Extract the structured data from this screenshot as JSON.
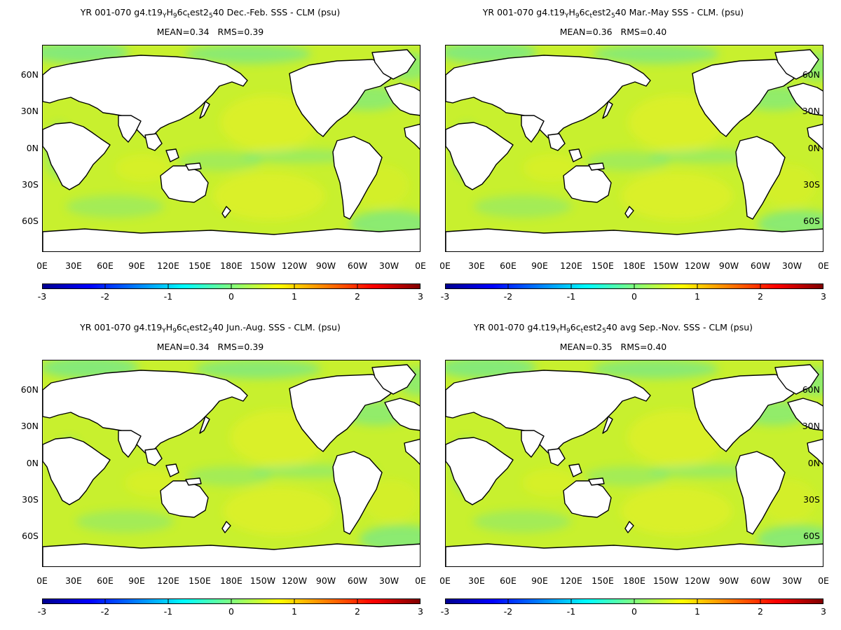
{
  "chart_data": [
    {
      "type": "heatmap",
      "title": {
        "pre": "YR 001-070 g4.t19",
        "s1": "Y",
        "m1": "H",
        "s2": "9",
        "m2": "6c",
        "s3": "t",
        "m3": "est2",
        "s4": "5",
        "post": "40  Dec.-Feb. SSS - CLM (psu)"
      },
      "stats": "MEAN=0.34   RMS=0.39",
      "lat_ticks": [
        "60N",
        "30N",
        "0N",
        "30S",
        "60S"
      ],
      "lon_ticks": [
        "0E",
        "30E",
        "60E",
        "90E",
        "120E",
        "150E",
        "180E",
        "150W",
        "120W",
        "90W",
        "60W",
        "30W",
        "0E"
      ],
      "colorbar_ticks": [
        "-3",
        "-2",
        "-1",
        "0",
        "1",
        "2",
        "3"
      ],
      "colorbar_range": [
        -3,
        3
      ],
      "mean": 0.34,
      "rms": 0.39
    },
    {
      "type": "heatmap",
      "title": {
        "pre": "YR 001-070 g4.t19",
        "s1": "Y",
        "m1": "H",
        "s2": "9",
        "m2": "6c",
        "s3": "t",
        "m3": "est2",
        "s4": "5",
        "post": "40 Mar.-May SSS - CLM. (psu)"
      },
      "stats": "MEAN=0.36   RMS=0.40",
      "lat_ticks": [
        "60N",
        "30N",
        "0N",
        "30S",
        "60S"
      ],
      "lon_ticks": [
        "0E",
        "30E",
        "60E",
        "90E",
        "120E",
        "150E",
        "180E",
        "150W",
        "120W",
        "90W",
        "60W",
        "30W",
        "0E"
      ],
      "colorbar_ticks": [
        "-3",
        "-2",
        "-1",
        "0",
        "1",
        "2",
        "3"
      ],
      "colorbar_range": [
        -3,
        3
      ],
      "mean": 0.36,
      "rms": 0.4
    },
    {
      "type": "heatmap",
      "title": {
        "pre": "YR 001-070 g4.t19",
        "s1": "Y",
        "m1": "H",
        "s2": "9",
        "m2": "6c",
        "s3": "t",
        "m3": "est2",
        "s4": "5",
        "post": "40 Jun.-Aug. SSS - CLM. (psu)"
      },
      "stats": "MEAN=0.34   RMS=0.39",
      "lat_ticks": [
        "60N",
        "30N",
        "0N",
        "30S",
        "60S"
      ],
      "lon_ticks": [
        "0E",
        "30E",
        "60E",
        "90E",
        "120E",
        "150E",
        "180E",
        "150W",
        "120W",
        "90W",
        "60W",
        "30W",
        "0E"
      ],
      "colorbar_ticks": [
        "-3",
        "-2",
        "-1",
        "0",
        "1",
        "2",
        "3"
      ],
      "colorbar_range": [
        -3,
        3
      ],
      "mean": 0.34,
      "rms": 0.39
    },
    {
      "type": "heatmap",
      "title": {
        "pre": "YR 001-070 g4.t19",
        "s1": "Y",
        "m1": "H",
        "s2": "9",
        "m2": "6c",
        "s3": "t",
        "m3": "est2",
        "s4": "5",
        "post": "40 avg Sep.-Nov. SSS - CLM (psu)"
      },
      "stats": "MEAN=0.35   RMS=0.40",
      "lat_ticks": [
        "60N",
        "30N",
        "0N",
        "30S",
        "60S"
      ],
      "lon_ticks": [
        "0E",
        "30E",
        "60E",
        "90E",
        "120E",
        "150E",
        "180E",
        "150W",
        "120W",
        "90W",
        "60W",
        "30W",
        "0E"
      ],
      "colorbar_ticks": [
        "-3",
        "-2",
        "-1",
        "0",
        "1",
        "2",
        "3"
      ],
      "colorbar_range": [
        -3,
        3
      ],
      "mean": 0.35,
      "rms": 0.4
    }
  ],
  "colors": {
    "field_base": "#c8f02e",
    "field_high": "#f0f020",
    "field_low": "#50e6b4",
    "land": "#ffffff",
    "coast": "#000000",
    "colorbar": [
      "#00008f",
      "#0000ff",
      "#007fff",
      "#00ffff",
      "#7fff7f",
      "#ffff00",
      "#ff7f00",
      "#ff0000",
      "#7f0000"
    ]
  }
}
